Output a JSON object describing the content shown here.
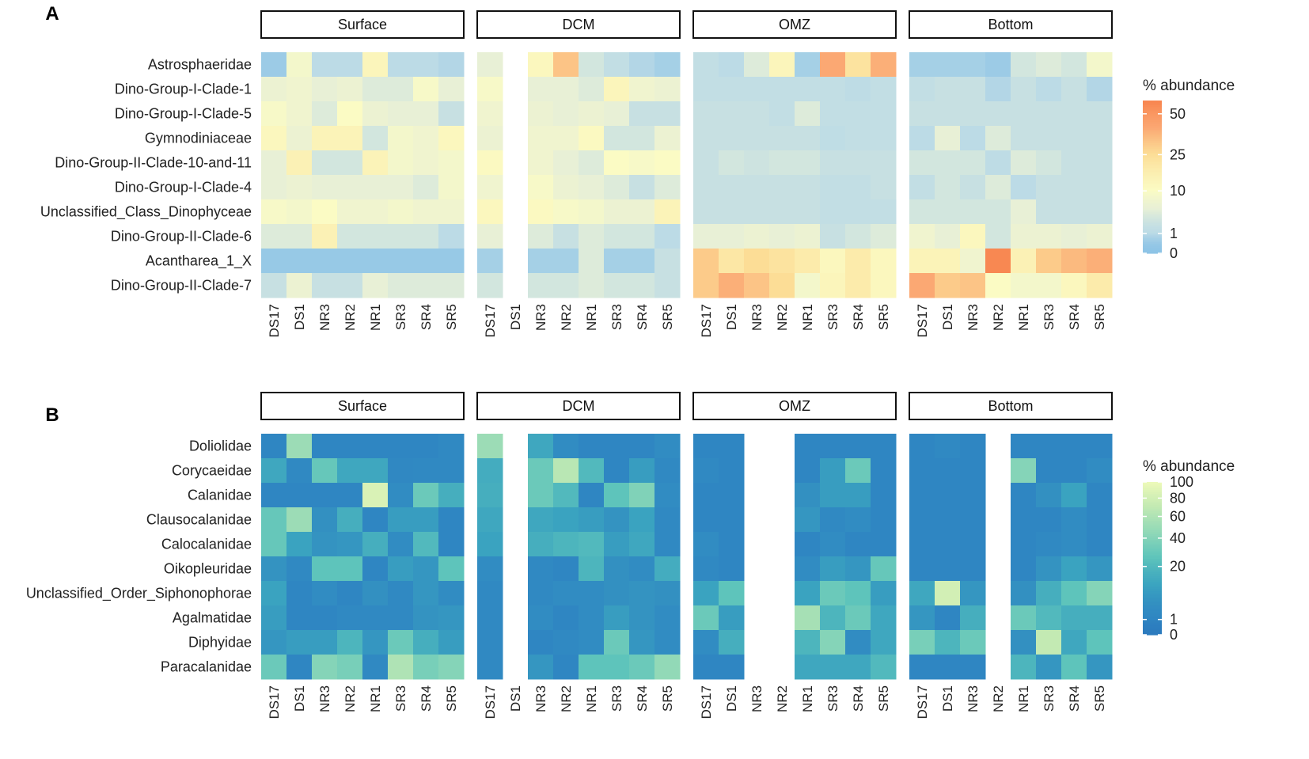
{
  "chart_data": [
    {
      "panel": "A",
      "type": "heatmap",
      "facets": [
        "Surface",
        "DCM",
        "OMZ",
        "Bottom"
      ],
      "columns": [
        "DS17",
        "DS1",
        "NR3",
        "NR2",
        "NR1",
        "SR3",
        "SR4",
        "SR5"
      ],
      "rows": [
        "Astrosphaeridae",
        "Dino-Group-I-Clade-1",
        "Dino-Group-I-Clade-5",
        "Gymnodiniaceae",
        "Dino-Group-II-Clade-10-and-11",
        "Dino-Group-I-Clade-4",
        "Unclassified_Class_Dinophyceae",
        "Dino-Group-II-Clade-6",
        "Acantharea_1_X",
        "Dino-Group-II-Clade-7"
      ],
      "legend": {
        "title": "% abundance",
        "ticks": [
          "0",
          "1",
          "10",
          "25",
          "50"
        ],
        "tick_values": [
          0,
          1,
          10,
          25,
          50
        ],
        "colors": [
          "#8ec4e6",
          "#bcdbe6",
          "#e8f0d6",
          "#fbfbc4",
          "#fcdd96",
          "#fba873",
          "#f8844e"
        ],
        "stops": [
          0,
          1,
          5,
          10,
          25,
          40,
          60
        ],
        "max": 60
      },
      "values": {
        "Surface": [
          [
            0.3,
            8,
            1,
            1,
            13,
            1,
            1,
            0.8
          ],
          [
            6,
            7,
            5,
            6,
            4,
            4,
            9,
            5
          ],
          [
            9,
            7,
            4,
            10,
            6,
            5,
            5,
            2
          ],
          [
            12,
            6,
            14,
            14,
            3,
            8,
            7,
            12
          ],
          [
            5,
            15,
            3,
            3,
            14,
            8,
            7,
            8
          ],
          [
            5,
            6,
            5,
            5,
            5,
            5,
            4,
            8
          ],
          [
            9,
            8,
            10,
            7,
            7,
            8,
            7,
            7
          ],
          [
            4,
            4,
            15,
            3,
            3,
            3,
            3,
            1
          ],
          [
            0.2,
            0.2,
            0.2,
            0.2,
            0.2,
            0.2,
            0.2,
            0.2
          ],
          [
            2,
            6,
            2,
            2,
            5,
            4,
            4,
            4
          ]
        ],
        "DCM": [
          [
            5,
            null,
            12,
            32,
            3,
            1.5,
            0.8,
            0.5
          ],
          [
            9,
            null,
            5,
            5,
            4,
            13,
            7,
            6
          ],
          [
            7,
            null,
            6,
            5,
            6,
            5,
            2,
            2
          ],
          [
            6,
            null,
            7,
            7,
            11,
            3,
            3,
            6
          ],
          [
            11,
            null,
            7,
            5,
            4,
            10,
            9,
            10
          ],
          [
            7,
            null,
            9,
            6,
            5,
            4,
            2,
            4
          ],
          [
            12,
            null,
            11,
            9,
            8,
            6,
            6,
            14
          ],
          [
            5,
            null,
            4,
            2,
            4,
            3,
            3,
            1
          ],
          [
            0.5,
            null,
            0.5,
            0.5,
            4,
            0.5,
            0.5,
            2
          ],
          [
            3,
            null,
            3,
            3,
            4,
            3,
            3,
            2
          ]
        ],
        "OMZ": [
          [
            1.5,
            1,
            4,
            13,
            0.5,
            40,
            22,
            38
          ],
          [
            1.5,
            1.5,
            1.5,
            1.5,
            1.5,
            1.5,
            1.2,
            1.5
          ],
          [
            2,
            2,
            2,
            1.5,
            4,
            1.5,
            1.5,
            1.5
          ],
          [
            2,
            2,
            2,
            2,
            2,
            1.3,
            1.5,
            1.5
          ],
          [
            2,
            3,
            2.5,
            3,
            3,
            2,
            2,
            2
          ],
          [
            2,
            2,
            2,
            2,
            2,
            1.5,
            1.5,
            2
          ],
          [
            2,
            2,
            2,
            2,
            2,
            1.5,
            1.5,
            1.5
          ],
          [
            5,
            5,
            6,
            5,
            6,
            2,
            3,
            4
          ],
          [
            30,
            20,
            25,
            22,
            18,
            12,
            18,
            12
          ],
          [
            30,
            38,
            32,
            25,
            8,
            13,
            18,
            12
          ]
        ],
        "Bottom": [
          [
            0.5,
            0.5,
            0.5,
            0.3,
            3,
            4,
            3,
            8
          ],
          [
            1.5,
            2,
            2,
            0.8,
            2,
            1,
            2,
            0.8
          ],
          [
            2,
            2,
            2,
            2,
            2,
            2,
            2,
            2
          ],
          [
            1,
            5,
            1,
            4,
            2,
            2,
            2,
            2
          ],
          [
            3,
            3,
            3,
            1.2,
            4,
            3,
            2,
            2
          ],
          [
            1.5,
            3,
            2,
            4,
            1,
            2,
            2,
            2
          ],
          [
            3,
            3,
            3,
            3,
            5,
            2,
            2,
            2
          ],
          [
            7,
            5,
            12,
            3,
            6,
            6,
            5,
            6
          ],
          [
            14,
            14,
            7,
            58,
            15,
            30,
            35,
            38
          ],
          [
            40,
            30,
            32,
            10,
            8,
            8,
            12,
            18
          ]
        ]
      }
    },
    {
      "panel": "B",
      "type": "heatmap",
      "facets": [
        "Surface",
        "DCM",
        "OMZ",
        "Bottom"
      ],
      "columns": [
        "DS17",
        "DS1",
        "NR3",
        "NR2",
        "NR1",
        "SR3",
        "SR4",
        "SR5"
      ],
      "rows": [
        "Doliolidae",
        "Corycaeidae",
        "Calanidae",
        "Clausocalanidae",
        "Calocalanidae",
        "Oikopleuridae",
        "Unclassified_Order_Siphonophorae",
        "Agalmatidae",
        "Diphyidae",
        "Paracalanidae"
      ],
      "legend": {
        "title": "% abundance",
        "ticks": [
          "0",
          "1",
          "20",
          "40",
          "60",
          "80",
          "100"
        ],
        "tick_values": [
          0,
          1,
          20,
          40,
          60,
          80,
          100
        ],
        "colors": [
          "#2c7bbe",
          "#2f86c2",
          "#3aa3c0",
          "#5ec4bb",
          "#92d9b7",
          "#c3eab3",
          "#effab9"
        ],
        "stops": [
          0,
          1,
          10,
          25,
          45,
          70,
          100
        ],
        "max": 100
      },
      "values": {
        "Surface": [
          [
            1,
            50,
            1,
            1,
            1,
            1,
            1,
            2
          ],
          [
            12,
            2,
            28,
            12,
            12,
            1.5,
            2,
            2
          ],
          [
            1,
            1,
            1,
            1,
            85,
            3,
            30,
            15
          ],
          [
            28,
            50,
            4,
            15,
            1,
            8,
            8,
            1
          ],
          [
            28,
            10,
            5,
            6,
            15,
            3,
            20,
            1
          ],
          [
            5,
            2,
            25,
            25,
            1,
            8,
            6,
            25
          ],
          [
            10,
            1,
            3,
            1,
            4,
            2,
            6,
            3
          ],
          [
            8,
            1,
            1,
            2,
            2,
            2,
            5,
            6
          ],
          [
            6,
            8,
            8,
            18,
            6,
            30,
            15,
            8
          ],
          [
            30,
            1,
            40,
            35,
            2,
            60,
            35,
            40
          ]
        ],
        "DCM": [
          [
            50,
            null,
            12,
            3,
            1,
            1,
            1,
            3
          ],
          [
            14,
            null,
            30,
            65,
            20,
            1,
            8,
            2
          ],
          [
            15,
            null,
            30,
            20,
            1,
            25,
            38,
            3
          ],
          [
            12,
            null,
            12,
            10,
            8,
            5,
            10,
            2
          ],
          [
            10,
            null,
            15,
            18,
            20,
            8,
            12,
            2
          ],
          [
            3,
            null,
            2,
            1,
            18,
            4,
            3,
            14
          ],
          [
            2,
            null,
            2,
            3,
            3,
            4,
            5,
            4
          ],
          [
            2,
            null,
            3,
            1,
            3,
            8,
            5,
            3
          ],
          [
            2,
            null,
            1,
            2,
            3,
            30,
            6,
            3
          ],
          [
            2,
            null,
            6,
            1,
            25,
            25,
            30,
            45
          ]
        ],
        "OMZ": [
          [
            1,
            1,
            null,
            null,
            1,
            1,
            1,
            1
          ],
          [
            2,
            1,
            null,
            null,
            1,
            8,
            30,
            1
          ],
          [
            1,
            1,
            null,
            null,
            4,
            8,
            8,
            1
          ],
          [
            1,
            1,
            null,
            null,
            6,
            2,
            3,
            1
          ],
          [
            3,
            1,
            null,
            null,
            1,
            3,
            1,
            1
          ],
          [
            2,
            1,
            null,
            null,
            3,
            8,
            6,
            28
          ],
          [
            10,
            25,
            null,
            null,
            10,
            30,
            25,
            8
          ],
          [
            30,
            8,
            null,
            null,
            55,
            18,
            30,
            12
          ],
          [
            3,
            15,
            null,
            null,
            18,
            40,
            3,
            12
          ],
          [
            1,
            1,
            null,
            null,
            12,
            12,
            12,
            20
          ]
        ],
        "Bottom": [
          [
            1,
            2,
            1,
            null,
            1,
            1,
            1,
            1
          ],
          [
            1,
            1,
            1,
            null,
            40,
            1,
            1,
            3
          ],
          [
            1,
            1,
            1,
            null,
            1,
            4,
            10,
            1
          ],
          [
            1,
            1,
            1,
            null,
            1,
            1,
            3,
            1
          ],
          [
            1,
            1,
            1,
            null,
            1,
            2,
            3,
            1
          ],
          [
            1,
            1,
            1,
            null,
            1,
            5,
            10,
            6
          ],
          [
            12,
            80,
            6,
            null,
            4,
            15,
            25,
            40
          ],
          [
            6,
            1,
            15,
            null,
            30,
            20,
            15,
            15
          ],
          [
            35,
            18,
            30,
            null,
            4,
            70,
            12,
            25
          ],
          [
            1,
            1,
            1,
            null,
            18,
            6,
            25,
            6
          ]
        ]
      }
    }
  ]
}
